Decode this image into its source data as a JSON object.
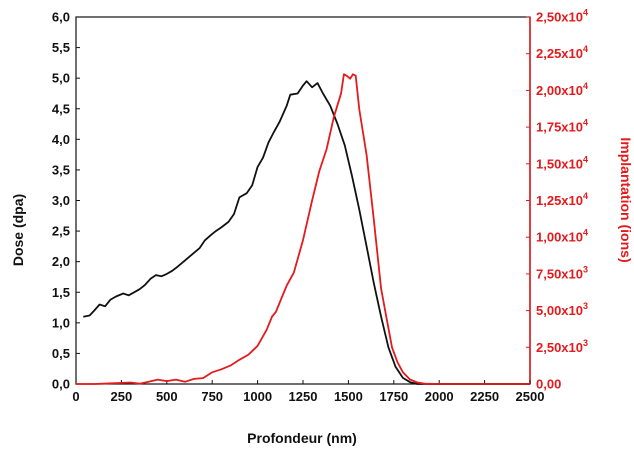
{
  "chart_data": {
    "type": "line",
    "title": "",
    "xlabel": "Profondeur (nm)",
    "ylabel": "Dose (dpa)",
    "y2label": "Implantation (ions)",
    "xlim": [
      0,
      2500
    ],
    "ylim": [
      0,
      6.0
    ],
    "y2lim": [
      0,
      25000
    ],
    "grid": false,
    "legend": "none",
    "x_ticks": [
      "0",
      "250",
      "500",
      "750",
      "1000",
      "1250",
      "1500",
      "1750",
      "2000",
      "2250",
      "2500"
    ],
    "y_ticks": [
      "0,0",
      "0,5",
      "1,0",
      "1,5",
      "2,0",
      "2,5",
      "3,0",
      "3,5",
      "4,0",
      "4,5",
      "5,0",
      "5,5",
      "6,0"
    ],
    "y2_ticks": [
      {
        "mantissa": "0,00",
        "exp": ""
      },
      {
        "mantissa": "2,50x10",
        "exp": "3"
      },
      {
        "mantissa": "5,00x10",
        "exp": "3"
      },
      {
        "mantissa": "7,50x10",
        "exp": "3"
      },
      {
        "mantissa": "1,00x10",
        "exp": "4"
      },
      {
        "mantissa": "1,25x10",
        "exp": "4"
      },
      {
        "mantissa": "1,50x10",
        "exp": "4"
      },
      {
        "mantissa": "1,75x10",
        "exp": "4"
      },
      {
        "mantissa": "2,00x10",
        "exp": "4"
      },
      {
        "mantissa": "2,25x10",
        "exp": "4"
      },
      {
        "mantissa": "2,50x10",
        "exp": "4"
      }
    ],
    "colors": {
      "dose": "#111111",
      "implantation": "#e41a1c"
    },
    "series": [
      {
        "axis": "left",
        "color": "#111111",
        "points": [
          [
            40,
            1.1
          ],
          [
            75,
            1.12
          ],
          [
            100,
            1.2
          ],
          [
            130,
            1.3
          ],
          [
            160,
            1.27
          ],
          [
            190,
            1.38
          ],
          [
            220,
            1.43
          ],
          [
            260,
            1.48
          ],
          [
            290,
            1.45
          ],
          [
            320,
            1.5
          ],
          [
            350,
            1.55
          ],
          [
            380,
            1.62
          ],
          [
            410,
            1.72
          ],
          [
            440,
            1.78
          ],
          [
            470,
            1.76
          ],
          [
            500,
            1.8
          ],
          [
            530,
            1.85
          ],
          [
            560,
            1.92
          ],
          [
            600,
            2.02
          ],
          [
            640,
            2.12
          ],
          [
            680,
            2.22
          ],
          [
            710,
            2.35
          ],
          [
            740,
            2.43
          ],
          [
            770,
            2.5
          ],
          [
            800,
            2.56
          ],
          [
            840,
            2.65
          ],
          [
            870,
            2.78
          ],
          [
            900,
            3.05
          ],
          [
            940,
            3.12
          ],
          [
            970,
            3.25
          ],
          [
            1000,
            3.55
          ],
          [
            1030,
            3.7
          ],
          [
            1060,
            3.95
          ],
          [
            1090,
            4.12
          ],
          [
            1120,
            4.28
          ],
          [
            1160,
            4.55
          ],
          [
            1180,
            4.73
          ],
          [
            1220,
            4.75
          ],
          [
            1250,
            4.88
          ],
          [
            1270,
            4.95
          ],
          [
            1300,
            4.85
          ],
          [
            1330,
            4.92
          ],
          [
            1360,
            4.75
          ],
          [
            1400,
            4.55
          ],
          [
            1440,
            4.25
          ],
          [
            1480,
            3.9
          ],
          [
            1520,
            3.4
          ],
          [
            1560,
            2.85
          ],
          [
            1600,
            2.25
          ],
          [
            1640,
            1.65
          ],
          [
            1680,
            1.1
          ],
          [
            1720,
            0.6
          ],
          [
            1760,
            0.28
          ],
          [
            1800,
            0.1
          ],
          [
            1840,
            0.03
          ],
          [
            1880,
            0.0
          ],
          [
            2000,
            0.0
          ],
          [
            2500,
            0.0
          ]
        ]
      },
      {
        "axis": "right",
        "color": "#e41a1c",
        "points": [
          [
            0,
            0
          ],
          [
            100,
            0
          ],
          [
            200,
            50
          ],
          [
            300,
            100
          ],
          [
            350,
            20
          ],
          [
            400,
            150
          ],
          [
            450,
            300
          ],
          [
            500,
            200
          ],
          [
            550,
            300
          ],
          [
            600,
            150
          ],
          [
            650,
            350
          ],
          [
            700,
            400
          ],
          [
            750,
            800
          ],
          [
            800,
            1000
          ],
          [
            850,
            1250
          ],
          [
            900,
            1650
          ],
          [
            950,
            2000
          ],
          [
            1000,
            2600
          ],
          [
            1050,
            3700
          ],
          [
            1080,
            4600
          ],
          [
            1100,
            4900
          ],
          [
            1130,
            5800
          ],
          [
            1160,
            6700
          ],
          [
            1200,
            7600
          ],
          [
            1250,
            9800
          ],
          [
            1300,
            12500
          ],
          [
            1340,
            14500
          ],
          [
            1380,
            16000
          ],
          [
            1420,
            18200
          ],
          [
            1460,
            19800
          ],
          [
            1475,
            21100
          ],
          [
            1490,
            21000
          ],
          [
            1510,
            20800
          ],
          [
            1525,
            21100
          ],
          [
            1540,
            21000
          ],
          [
            1560,
            18700
          ],
          [
            1600,
            15600
          ],
          [
            1640,
            11200
          ],
          [
            1680,
            6500
          ],
          [
            1710,
            4500
          ],
          [
            1740,
            2500
          ],
          [
            1770,
            1500
          ],
          [
            1800,
            800
          ],
          [
            1840,
            300
          ],
          [
            1880,
            100
          ],
          [
            1920,
            20
          ],
          [
            2000,
            0
          ],
          [
            2500,
            0
          ]
        ]
      }
    ]
  }
}
